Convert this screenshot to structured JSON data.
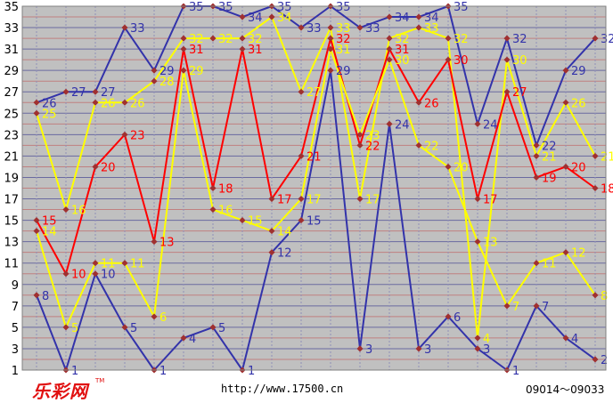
{
  "chart_data": {
    "type": "line",
    "title": "",
    "xlabel": "",
    "ylabel": "",
    "ylim": [
      1,
      35
    ],
    "yticks": [
      1,
      3,
      5,
      7,
      9,
      11,
      13,
      15,
      17,
      19,
      21,
      23,
      25,
      27,
      29,
      31,
      33,
      35
    ],
    "grid": true,
    "background": "#c0c0c0",
    "x": [
      1,
      2,
      3,
      4,
      5,
      6,
      7,
      8,
      9,
      10,
      11,
      12,
      13,
      14,
      15,
      16,
      17,
      18,
      19,
      20
    ],
    "series": [
      {
        "color": "#3333aa",
        "values": [
          26,
          27,
          27,
          33,
          29,
          35,
          35,
          34,
          35,
          33,
          35,
          33,
          34,
          34,
          35,
          24,
          32,
          22,
          29,
          32
        ]
      },
      {
        "color": "#ffff00",
        "values": [
          25,
          16,
          26,
          26,
          28,
          32,
          32,
          32,
          34,
          27,
          33,
          17,
          32,
          33,
          32,
          4,
          30,
          21,
          26,
          21
        ]
      },
      {
        "color": "#ff0000",
        "values": [
          15,
          10,
          20,
          23,
          13,
          31,
          18,
          31,
          17,
          21,
          32,
          22,
          31,
          26,
          30,
          17,
          27,
          19,
          20,
          18
        ]
      },
      {
        "color": "#ffff00",
        "values": [
          14,
          5,
          11,
          11,
          6,
          29,
          16,
          15,
          14,
          17,
          31,
          23,
          30,
          22,
          20,
          13,
          7,
          11,
          12,
          8
        ]
      },
      {
        "color": "#3333aa",
        "values": [
          8,
          1,
          10,
          5,
          1,
          4,
          5,
          1,
          12,
          15,
          29,
          3,
          24,
          3,
          6,
          3,
          1,
          7,
          4,
          2
        ]
      }
    ]
  },
  "footer": {
    "logo": "乐彩网",
    "logo_tm": "TM",
    "url": "http://www.17500.cn",
    "range": "09014～09033"
  }
}
